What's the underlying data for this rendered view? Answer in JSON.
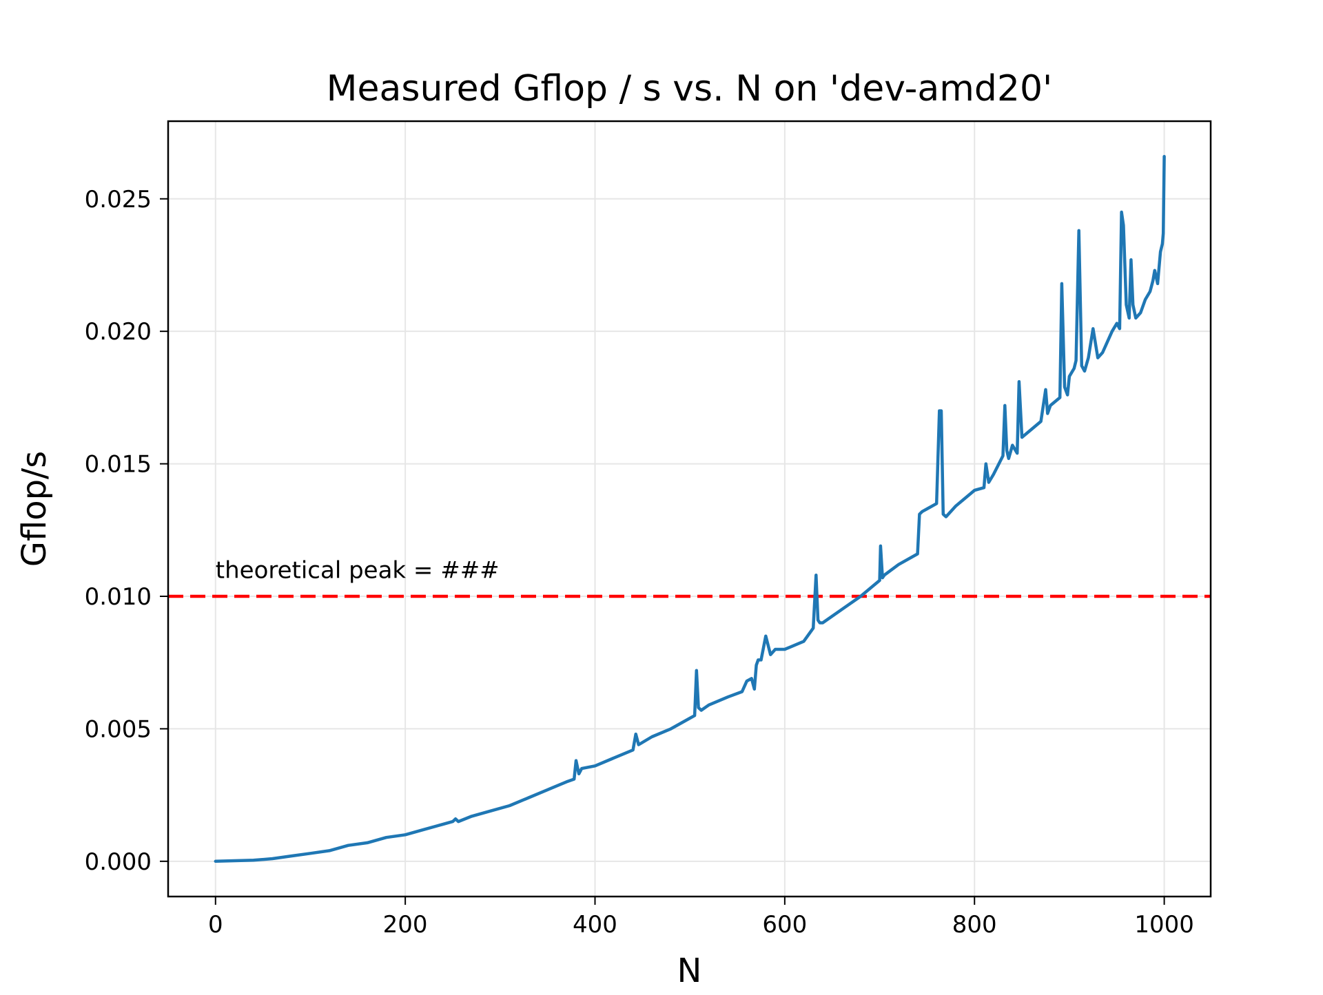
{
  "chart_data": {
    "type": "line",
    "title": "Measured Gflop / s vs. N on 'dev-amd20'",
    "xlabel": "N",
    "ylabel": "Gflop/s",
    "xlim": [
      -49.95,
      1048.95
    ],
    "ylim": [
      -0.00133,
      0.02793
    ],
    "xticks": [
      0,
      200,
      400,
      600,
      800,
      1000
    ],
    "xtick_labels": [
      "0",
      "200",
      "400",
      "600",
      "800",
      "1000"
    ],
    "yticks": [
      0.0,
      0.005,
      0.01,
      0.015,
      0.02,
      0.025
    ],
    "ytick_labels": [
      "0.000",
      "0.005",
      "0.010",
      "0.015",
      "0.020",
      "0.025"
    ],
    "grid": true,
    "series": [
      {
        "color": "#1f77b4",
        "style": "solid",
        "x": [
          0,
          20,
          40,
          60,
          80,
          100,
          120,
          140,
          160,
          180,
          200,
          220,
          240,
          250,
          253,
          256,
          270,
          290,
          310,
          330,
          350,
          370,
          378,
          380,
          383,
          386,
          400,
          420,
          440,
          443,
          446,
          460,
          480,
          500,
          505,
          507,
          509,
          512,
          520,
          540,
          555,
          560,
          565,
          568,
          570,
          572,
          575,
          580,
          585,
          590,
          600,
          620,
          630,
          633,
          635,
          637,
          640,
          660,
          680,
          700,
          701,
          703,
          705,
          720,
          740,
          742,
          745,
          750,
          760,
          763,
          765,
          767,
          770,
          780,
          800,
          810,
          812,
          815,
          820,
          830,
          832,
          834,
          836,
          840,
          845,
          847,
          850,
          860,
          870,
          875,
          877,
          880,
          890,
          892,
          895,
          898,
          900,
          905,
          907,
          910,
          913,
          916,
          920,
          925,
          930,
          935,
          940,
          945,
          950,
          953,
          955,
          957,
          960,
          963,
          965,
          967,
          970,
          975,
          980,
          985,
          988,
          990,
          993,
          996,
          998,
          999,
          1000
        ],
        "y": [
          0.0,
          2e-05,
          4e-05,
          0.0001,
          0.0002,
          0.0003,
          0.0004,
          0.0006,
          0.0007,
          0.0009,
          0.001,
          0.0012,
          0.0014,
          0.0015,
          0.0016,
          0.0015,
          0.0017,
          0.0019,
          0.0021,
          0.0024,
          0.0027,
          0.003,
          0.0031,
          0.0038,
          0.0033,
          0.0035,
          0.0036,
          0.0039,
          0.0042,
          0.0048,
          0.0044,
          0.0047,
          0.005,
          0.0054,
          0.0055,
          0.0072,
          0.0058,
          0.0057,
          0.0059,
          0.0062,
          0.0064,
          0.0068,
          0.0069,
          0.0065,
          0.0074,
          0.0076,
          0.0076,
          0.0085,
          0.0078,
          0.008,
          0.008,
          0.0083,
          0.0088,
          0.0108,
          0.0091,
          0.009,
          0.009,
          0.0095,
          0.01,
          0.0106,
          0.0119,
          0.0107,
          0.0108,
          0.0112,
          0.0116,
          0.0131,
          0.0132,
          0.0133,
          0.0135,
          0.017,
          0.017,
          0.0131,
          0.013,
          0.0134,
          0.014,
          0.0141,
          0.015,
          0.0143,
          0.0146,
          0.0153,
          0.0172,
          0.0155,
          0.0152,
          0.0157,
          0.0154,
          0.0181,
          0.016,
          0.0163,
          0.0166,
          0.0178,
          0.0169,
          0.0172,
          0.0175,
          0.0218,
          0.0179,
          0.0176,
          0.0183,
          0.0186,
          0.0189,
          0.0238,
          0.0187,
          0.0185,
          0.019,
          0.0201,
          0.019,
          0.0192,
          0.0196,
          0.02,
          0.0203,
          0.0201,
          0.0245,
          0.024,
          0.021,
          0.0205,
          0.0227,
          0.021,
          0.0205,
          0.0207,
          0.0212,
          0.0215,
          0.0219,
          0.0223,
          0.0218,
          0.023,
          0.0233,
          0.0237,
          0.0266
        ]
      }
    ],
    "reference_line": {
      "y": 0.01,
      "color": "#ff0000",
      "style": "dashed"
    },
    "annotations": [
      {
        "text": "theoretical peak = ###",
        "x": 0,
        "y": 0.011
      }
    ]
  }
}
